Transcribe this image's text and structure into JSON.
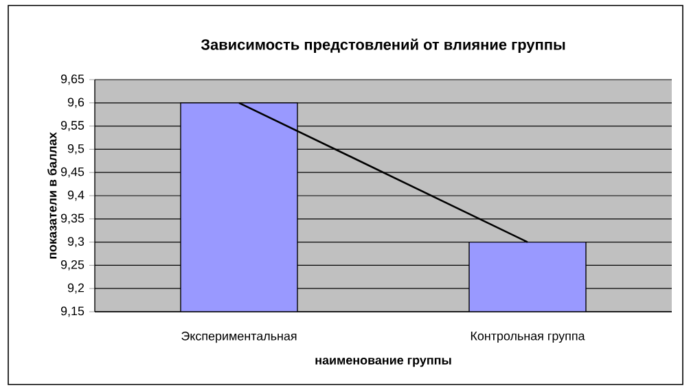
{
  "chart_data": {
    "type": "bar",
    "title": "Зависимость предстовлений от влияние группы",
    "xlabel": "наименование группы",
    "ylabel": "показатели в баллах",
    "categories": [
      "Экспериментальная",
      "Контрольная группа"
    ],
    "series": [
      {
        "color": "#9999ff",
        "values": [
          9.6,
          9.3
        ]
      },
      {
        "type": "line",
        "color": "#000000",
        "values": [
          9.6,
          9.3
        ]
      }
    ],
    "ylim": [
      9.15,
      9.65
    ],
    "yticks": [
      {
        "value": 9.15,
        "label": "9,15"
      },
      {
        "value": 9.2,
        "label": "9,2"
      },
      {
        "value": 9.25,
        "label": "9,25"
      },
      {
        "value": 9.3,
        "label": "9,3"
      },
      {
        "value": 9.35,
        "label": "9,35"
      },
      {
        "value": 9.4,
        "label": "9,4"
      },
      {
        "value": 9.45,
        "label": "9,45"
      },
      {
        "value": 9.5,
        "label": "9,5"
      },
      {
        "value": 9.55,
        "label": "9,55"
      },
      {
        "value": 9.6,
        "label": "9,6"
      },
      {
        "value": 9.65,
        "label": "9,65"
      }
    ],
    "grid": "y"
  }
}
